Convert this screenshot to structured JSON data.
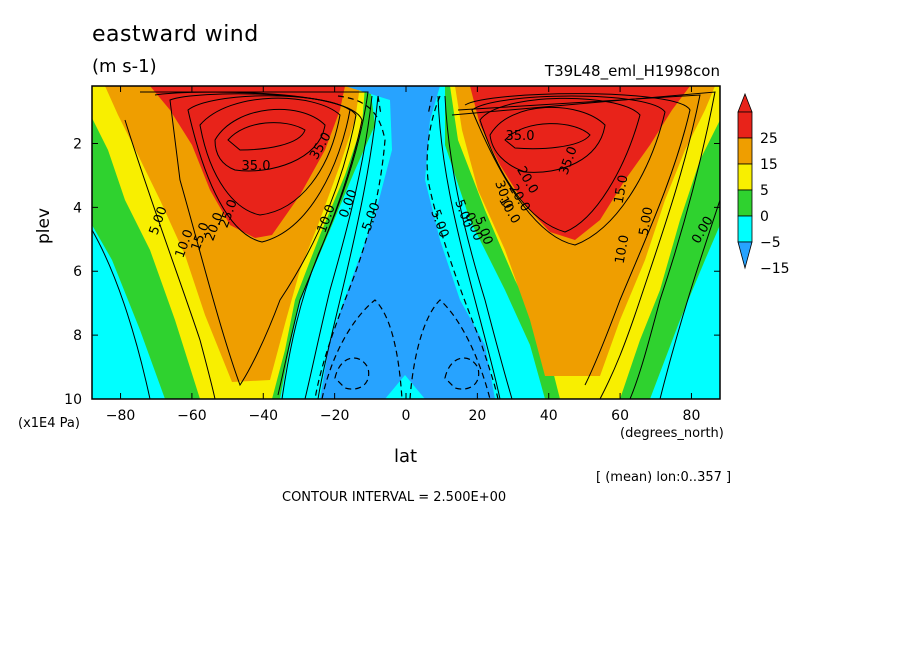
{
  "chart_data": {
    "type": "heatmap",
    "title": "eastward wind",
    "units": "(m s-1)",
    "run_name": "T39L48_eml_H1998con",
    "xlabel": "lat",
    "x_unit": "(degrees_north)",
    "ylabel": "plev",
    "y_unit": "(x1E4 Pa)",
    "x_ticks": [
      "-80",
      "-60",
      "-40",
      "-20",
      "0",
      "20",
      "40",
      "60",
      "80"
    ],
    "y_ticks": [
      "2",
      "4",
      "6",
      "8",
      "10"
    ],
    "xlim": [
      -88,
      88
    ],
    "ylim": [
      10,
      0.2
    ],
    "mean_note": "[ (mean) lon:0..357 ]",
    "contour_interval": "CONTOUR INTERVAL = 2.500E+00",
    "colorbar": {
      "labels": [
        "25",
        "15",
        "5",
        "0",
        "−5",
        "−15"
      ],
      "colors": [
        "#e8231a",
        "#ef9e00",
        "#f8ef00",
        "#2fd22f",
        "#00ffff",
        "#27a3ff"
      ]
    },
    "contour_labels": [
      "35.0",
      "35.0",
      "35.0",
      "35.0",
      "25.0",
      "20.0",
      "15.0",
      "10.0",
      "5.00",
      "5.00",
      "10.0",
      "0.00",
      "5.00",
      "5.00",
      "0.00",
      "5.00",
      "10.0",
      "20.0",
      "30.0",
      "20.0",
      "15.0",
      "10.0",
      "5.00",
      "0.00"
    ],
    "jets": [
      {
        "lat": -37,
        "plev": 1.6,
        "u": 35
      },
      {
        "lat": 40,
        "plev": 1.6,
        "u": 35
      }
    ]
  }
}
